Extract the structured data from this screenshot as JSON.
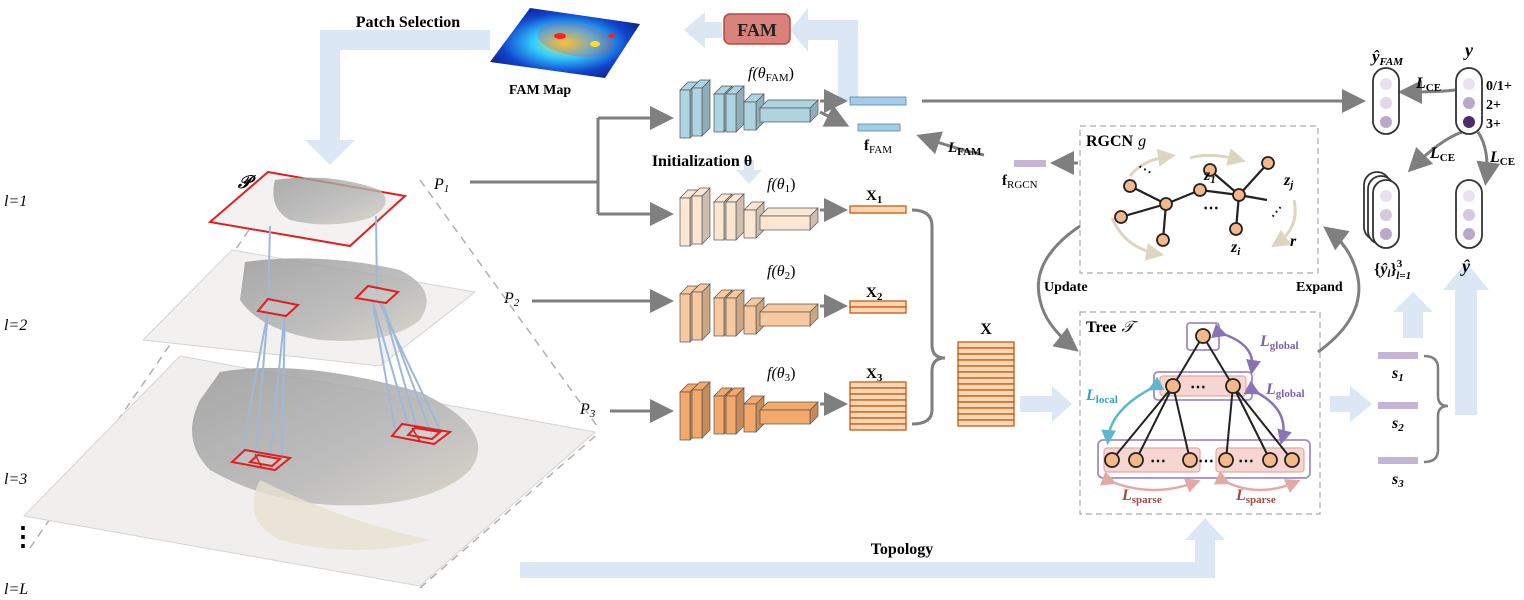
{
  "labels": {
    "patch_selection": "Patch Selection",
    "fam_map": "FAM Map",
    "fam_box": "FAM",
    "f_theta_fam": "f(θFAM)",
    "f_theta_fam_base": "f(θ",
    "f_theta_fam_sub": "FAM",
    "f_theta_close": ")",
    "init_theta": "Initialization θ",
    "f_fam": "fFAM",
    "f_fam_base": "f",
    "f_fam_sub": "FAM",
    "l_fam": "LFAM",
    "l_fam_base": "L",
    "l_fam_sub": "FAM",
    "f_rgcn": "fRGCN",
    "f_rgcn_base": "f",
    "f_rgcn_sub": "RGCN",
    "rgcn_g": "RGCN g",
    "rgcn_text": "RGCN",
    "g_text": "g",
    "P_symbol": "𝒫",
    "P1": "P1",
    "P2": "P2",
    "P3": "P3",
    "P_base": "P",
    "sub1": "1",
    "sub2": "2",
    "sub3": "3",
    "f_theta1": "f(θ1)",
    "f_theta2": "f(θ2)",
    "f_theta3": "f(θ3)",
    "f_theta_prefix": "f(θ",
    "X1": "X1",
    "X2": "X2",
    "X3": "X3",
    "X": "X",
    "X_base": "X",
    "z1": "z1",
    "zj": "zj",
    "zi": "zi",
    "r": "r",
    "z_base": "z",
    "z_sub_1": "1",
    "z_sub_j": "j",
    "z_sub_i": "i",
    "ellipsis": "⋯",
    "update": "Update",
    "expand": "Expand",
    "tree_T": "Tree 𝒯",
    "tree_text": "Tree",
    "tree_sym": "𝒯",
    "l_global": "Lglobal",
    "l_base": "L",
    "global_sub": "global",
    "l_local": "Llocal",
    "local_sub": "local",
    "l_sparse": "Lsparse",
    "sparse_sub": "sparse",
    "topology": "Topology",
    "s1": "s1",
    "s2": "s2",
    "s3": "s3",
    "s_base": "s",
    "y_hat_fam": "ŷFAM",
    "y_hat_base": "ŷ",
    "y": "y",
    "y_hat": "ŷ",
    "y_hat_l": "{ŷl}3l=1",
    "y_set_open": "{",
    "y_set_hat": "ŷ",
    "y_set_sub": "l",
    "y_set_close": "}",
    "y_set_sup": "3",
    "y_set_range": "l=1",
    "l_ce": "LCE",
    "ce_sub": "CE",
    "class_0": "0/1+",
    "class_2": "2+",
    "class_3": "3+",
    "level_1": "l=1",
    "level_2": "l=2",
    "level_3": "l=3",
    "level_L": "l=L",
    "vdots": "⋮"
  },
  "colors": {
    "arrow_gray": "#7f7f7f",
    "flow_blue": "#dbe7f4",
    "fam_box_fill": "#d9827c",
    "fam_box_stroke": "#b34a45",
    "fam_network": "#aed4e2",
    "net1": "#fbe6d3",
    "net2": "#f7c9a0",
    "net3": "#f3a86c",
    "feature_stroke": "#c55a11",
    "feature_fill": "#fbd7b6",
    "fam_feature": "#a5cce4",
    "rgcn_feature": "#c4b5d6",
    "node_fill": "#f5b88a",
    "tree_level_stroke": "#a08cc3",
    "tree_pink_fill": "#f7d6d2",
    "patch_red": "#e02020",
    "slide_line": "#9fb8d8",
    "global_arrow": "#8a73b3",
    "local_arrow": "#5fb6cf",
    "sparse_arrow": "#e3a9a5",
    "rgcn_loop": "#ddd6be",
    "pred_light": "#e9e1ef",
    "pred_mid": "#b9a8cc",
    "pred_dark": "#4a2e6b"
  },
  "icons": {
    "heatmap": "fam-heatmap",
    "network": "cnn-network"
  }
}
